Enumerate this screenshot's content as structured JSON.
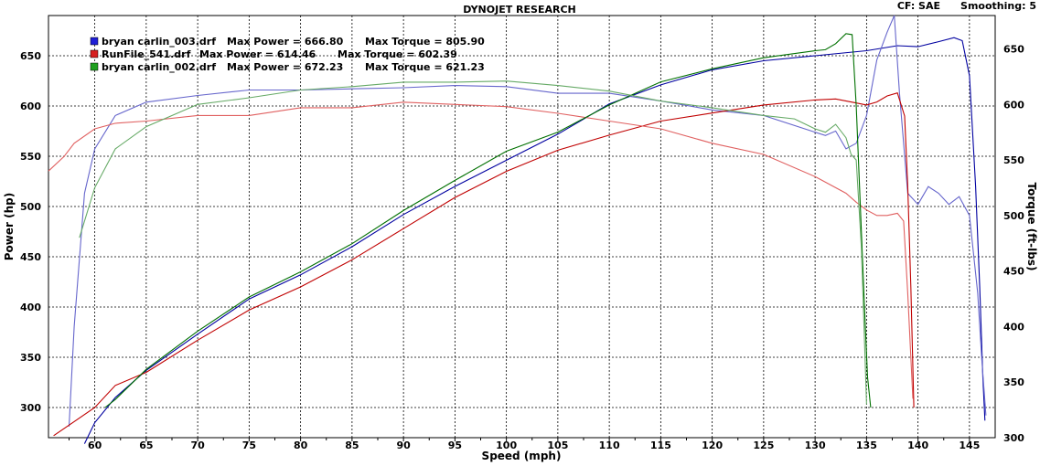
{
  "header": {
    "title": "DYNOJET RESEARCH",
    "cf": "CF: SAE",
    "smoothing": "Smoothing: 5"
  },
  "chart_data": {
    "type": "line",
    "xlabel": "Speed (mph)",
    "ylabel_left": "Power (hp)",
    "ylabel_right": "Torque (ft-lbs)",
    "xlim": [
      55.5,
      147.5
    ],
    "ylim_left": [
      270,
      690
    ],
    "ylim_right": [
      300,
      680
    ],
    "x_ticks": [
      60,
      65,
      70,
      75,
      80,
      85,
      90,
      95,
      100,
      105,
      110,
      115,
      120,
      125,
      130,
      135,
      140,
      145
    ],
    "y_left_ticks": [
      300,
      350,
      400,
      450,
      500,
      550,
      600,
      650
    ],
    "y_right_ticks": [
      300,
      350,
      400,
      450,
      500,
      550,
      600,
      650
    ],
    "grid": true,
    "legend_position": "top-left",
    "legend": [
      {
        "name": "bryan carlin_003.drf",
        "power_label": "Max Power = 666.80",
        "torque_label": "Max Torque = 805.90",
        "color": "#1f1fd6"
      },
      {
        "name": "RunFile_541.drf",
        "power_label": "Max Power = 614.46",
        "torque_label": "Max Torque = 602.39",
        "color": "#d61f1f"
      },
      {
        "name": "bryan carlin_002.drf",
        "power_label": "Max Power = 672.23",
        "torque_label": "Max Torque = 621.23",
        "color": "#1fa01f"
      }
    ],
    "series": [
      {
        "name": "bryan carlin_003.drf",
        "measure": "Power",
        "axis": "left",
        "color": "#0000a0",
        "x": [
          59,
          60,
          62,
          65,
          70,
          75,
          80,
          85,
          90,
          95,
          100,
          105,
          110,
          115,
          120,
          125,
          130,
          135,
          138,
          140,
          142,
          143.5,
          144.3,
          145,
          145.6,
          146,
          146.3,
          146.5
        ],
        "y": [
          264,
          285,
          310,
          337,
          373,
          408,
          432,
          460,
          492,
          520,
          546,
          572,
          602,
          621,
          636,
          645,
          650,
          655,
          660,
          659,
          664,
          668,
          665,
          630,
          520,
          420,
          330,
          287
        ]
      },
      {
        "name": "bryan carlin_003.drf",
        "measure": "Torque",
        "axis": "right",
        "color": "#6666cc",
        "x": [
          57.5,
          58,
          59,
          60,
          62,
          65,
          70,
          75,
          80,
          85,
          90,
          95,
          100,
          105,
          110,
          115,
          120,
          125,
          130,
          131,
          132,
          133,
          134,
          135,
          136,
          137,
          137.7,
          138.2,
          139,
          140,
          141,
          142,
          143,
          144,
          145,
          145.8,
          146.2,
          146.6
        ],
        "y": [
          310,
          400,
          520,
          560,
          590,
          602,
          608,
          613,
          613,
          614,
          615,
          617,
          616,
          610,
          610,
          603,
          595,
          590,
          575,
          572,
          576,
          560,
          565,
          590,
          640,
          665,
          680,
          610,
          520,
          510,
          526,
          520,
          510,
          517,
          500,
          430,
          370,
          320
        ]
      },
      {
        "name": "RunFile_541.drf",
        "measure": "Power",
        "axis": "left",
        "color": "#c00000",
        "x": [
          56,
          58,
          60,
          62,
          65,
          70,
          75,
          80,
          85,
          90,
          95,
          100,
          105,
          110,
          115,
          120,
          125,
          130,
          132,
          134,
          135,
          136,
          137,
          138,
          138.7,
          139,
          139.3,
          139.6
        ],
        "y": [
          272,
          286,
          300,
          322,
          335,
          367,
          397,
          420,
          447,
          478,
          509,
          535,
          556,
          571,
          585,
          593,
          601,
          606,
          607,
          603,
          601,
          604,
          610,
          613,
          590,
          520,
          420,
          300
        ]
      },
      {
        "name": "RunFile_541.drf",
        "measure": "Torque",
        "axis": "right",
        "color": "#e06060",
        "x": [
          55.5,
          57,
          58,
          60,
          62,
          65,
          70,
          75,
          80,
          85,
          90,
          95,
          100,
          105,
          110,
          115,
          120,
          125,
          130,
          133,
          134,
          135,
          136,
          137,
          138,
          138.6,
          139,
          139.5
        ],
        "y": [
          540,
          553,
          565,
          578,
          583,
          585,
          590,
          590,
          597,
          597,
          602,
          600,
          598,
          592,
          585,
          578,
          565,
          555,
          535,
          520,
          512,
          505,
          500,
          500,
          502,
          495,
          430,
          335
        ]
      },
      {
        "name": "bryan carlin_002.drf",
        "measure": "Power",
        "axis": "left",
        "color": "#007000",
        "x": [
          61,
          62,
          65,
          70,
          75,
          80,
          85,
          90,
          95,
          100,
          105,
          110,
          115,
          120,
          125,
          130,
          131,
          132,
          133,
          133.6,
          134,
          134.4,
          134.8,
          135.1,
          135.4
        ],
        "y": [
          300,
          308,
          338,
          376,
          410,
          435,
          463,
          496,
          526,
          555,
          574,
          601,
          624,
          637,
          648,
          655,
          656,
          662,
          672,
          671,
          600,
          500,
          400,
          330,
          300
        ]
      },
      {
        "name": "bryan carlin_002.drf",
        "measure": "Torque",
        "axis": "right",
        "color": "#66aa66",
        "x": [
          58.5,
          60,
          62,
          65,
          70,
          75,
          80,
          85,
          90,
          95,
          100,
          105,
          110,
          115,
          120,
          125,
          128,
          130,
          131,
          132,
          133,
          133.5,
          134,
          134.5,
          135
        ],
        "y": [
          480,
          525,
          560,
          580,
          600,
          606,
          613,
          616,
          620,
          620,
          621,
          617,
          612,
          603,
          597,
          590,
          587,
          578,
          575,
          582,
          570,
          555,
          550,
          470,
          330
        ]
      }
    ]
  }
}
